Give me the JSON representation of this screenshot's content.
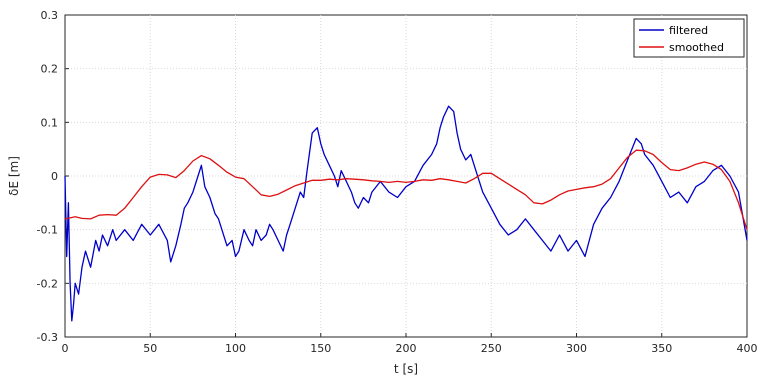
{
  "chart_data": {
    "type": "line",
    "title": "",
    "xlabel": "t [s]",
    "ylabel": "δE [m]",
    "xlim": [
      0,
      400
    ],
    "ylim": [
      -0.3,
      0.3
    ],
    "xticks": [
      0,
      50,
      100,
      150,
      200,
      250,
      300,
      350,
      400
    ],
    "yticks": [
      -0.3,
      -0.2,
      -0.1,
      0,
      0.1,
      0.2,
      0.3
    ],
    "xtick_labels": [
      "0",
      "50",
      "100",
      "150",
      "200",
      "250",
      "300",
      "350",
      "400"
    ],
    "ytick_labels": [
      "-0.3",
      "-0.2",
      "-0.1",
      "0",
      "0.1",
      "0.2",
      "0.3"
    ],
    "grid": true,
    "legend_position": "top-right",
    "series": [
      {
        "name": "filtered",
        "color": "#0000cc",
        "x": [
          0,
          1,
          2,
          3,
          4,
          5,
          6,
          8,
          10,
          12,
          15,
          18,
          20,
          22,
          25,
          28,
          30,
          35,
          40,
          45,
          50,
          55,
          60,
          62,
          65,
          68,
          70,
          72,
          75,
          78,
          80,
          82,
          85,
          88,
          90,
          92,
          95,
          98,
          100,
          102,
          105,
          108,
          110,
          112,
          115,
          118,
          120,
          122,
          125,
          128,
          130,
          132,
          135,
          138,
          140,
          142,
          145,
          148,
          150,
          152,
          155,
          158,
          160,
          162,
          165,
          168,
          170,
          172,
          175,
          178,
          180,
          185,
          190,
          195,
          200,
          205,
          210,
          215,
          218,
          220,
          222,
          225,
          228,
          230,
          232,
          235,
          238,
          240,
          245,
          250,
          255,
          260,
          265,
          270,
          275,
          280,
          285,
          290,
          295,
          300,
          305,
          310,
          315,
          320,
          325,
          330,
          335,
          338,
          340,
          345,
          350,
          355,
          360,
          365,
          370,
          375,
          380,
          385,
          390,
          395,
          400
        ],
        "y": [
          0,
          -0.15,
          -0.05,
          -0.2,
          -0.27,
          -0.24,
          -0.2,
          -0.22,
          -0.17,
          -0.14,
          -0.17,
          -0.12,
          -0.14,
          -0.11,
          -0.13,
          -0.1,
          -0.12,
          -0.1,
          -0.12,
          -0.09,
          -0.11,
          -0.09,
          -0.12,
          -0.16,
          -0.13,
          -0.09,
          -0.06,
          -0.05,
          -0.03,
          0,
          0.02,
          -0.02,
          -0.04,
          -0.07,
          -0.08,
          -0.1,
          -0.13,
          -0.12,
          -0.15,
          -0.14,
          -0.1,
          -0.12,
          -0.13,
          -0.1,
          -0.12,
          -0.11,
          -0.09,
          -0.1,
          -0.12,
          -0.14,
          -0.11,
          -0.09,
          -0.06,
          -0.03,
          -0.04,
          0.01,
          0.08,
          0.09,
          0.06,
          0.04,
          0.02,
          0,
          -0.02,
          0.01,
          -0.01,
          -0.03,
          -0.05,
          -0.06,
          -0.04,
          -0.05,
          -0.03,
          -0.01,
          -0.03,
          -0.04,
          -0.02,
          -0.01,
          0.02,
          0.04,
          0.06,
          0.09,
          0.11,
          0.13,
          0.12,
          0.08,
          0.05,
          0.03,
          0.04,
          0.02,
          -0.03,
          -0.06,
          -0.09,
          -0.11,
          -0.1,
          -0.08,
          -0.1,
          -0.12,
          -0.14,
          -0.11,
          -0.14,
          -0.12,
          -0.15,
          -0.09,
          -0.06,
          -0.04,
          -0.01,
          0.03,
          0.07,
          0.06,
          0.04,
          0.02,
          -0.01,
          -0.04,
          -0.03,
          -0.05,
          -0.02,
          -0.01,
          0.01,
          0.02,
          0,
          -0.03,
          -0.12
        ]
      },
      {
        "name": "smoothed",
        "color": "#dd1111",
        "x": [
          0,
          3,
          6,
          10,
          15,
          20,
          25,
          30,
          35,
          40,
          45,
          50,
          55,
          60,
          65,
          70,
          75,
          80,
          85,
          90,
          95,
          100,
          105,
          110,
          115,
          120,
          125,
          130,
          135,
          140,
          145,
          150,
          155,
          160,
          165,
          170,
          175,
          180,
          185,
          190,
          195,
          200,
          205,
          210,
          215,
          220,
          225,
          230,
          235,
          240,
          245,
          250,
          255,
          260,
          265,
          270,
          275,
          280,
          285,
          290,
          295,
          300,
          305,
          310,
          315,
          320,
          325,
          330,
          335,
          340,
          345,
          350,
          355,
          360,
          365,
          370,
          375,
          380,
          385,
          390,
          395,
          400
        ],
        "y": [
          -0.08,
          -0.078,
          -0.076,
          -0.079,
          -0.08,
          -0.073,
          -0.072,
          -0.073,
          -0.06,
          -0.04,
          -0.02,
          -0.002,
          0.003,
          0.002,
          -0.003,
          0.01,
          0.028,
          0.038,
          0.032,
          0.02,
          0.007,
          -0.002,
          -0.005,
          -0.02,
          -0.035,
          -0.038,
          -0.034,
          -0.026,
          -0.018,
          -0.013,
          -0.008,
          -0.008,
          -0.006,
          -0.007,
          -0.005,
          -0.006,
          -0.007,
          -0.009,
          -0.01,
          -0.012,
          -0.01,
          -0.012,
          -0.01,
          -0.007,
          -0.008,
          -0.005,
          -0.007,
          -0.01,
          -0.013,
          -0.005,
          0.005,
          0.005,
          -0.005,
          -0.015,
          -0.025,
          -0.035,
          -0.05,
          -0.052,
          -0.045,
          -0.035,
          -0.028,
          -0.025,
          -0.022,
          -0.02,
          -0.015,
          -0.005,
          0.015,
          0.035,
          0.048,
          0.047,
          0.04,
          0.025,
          0.012,
          0.01,
          0.015,
          0.022,
          0.026,
          0.022,
          0.012,
          -0.01,
          -0.05,
          -0.1
        ]
      }
    ]
  }
}
